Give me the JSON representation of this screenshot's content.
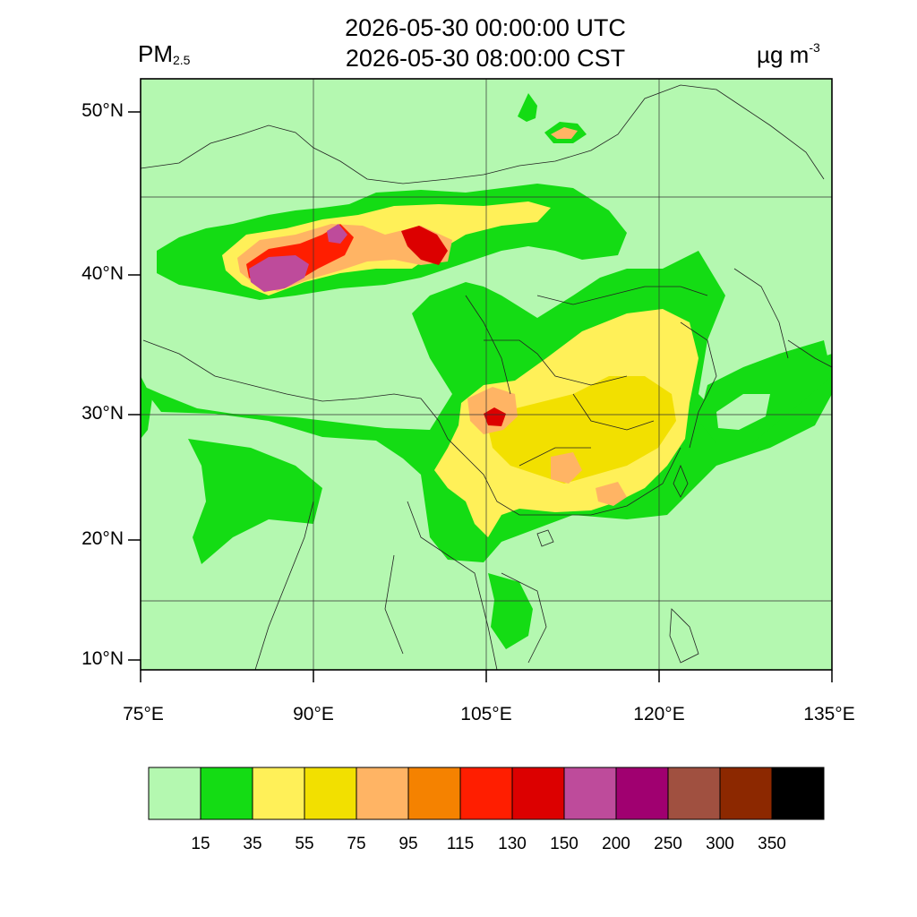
{
  "header": {
    "utc_time": "2026-05-30 00:00:00 UTC",
    "local_time": "2026-05-30 08:00:00 CST",
    "variable_base": "PM",
    "variable_sub": "2.5",
    "units_base": "µg m",
    "units_exp": "-3"
  },
  "axes": {
    "lat_labels": [
      "50°N",
      "40°N",
      "30°N",
      "20°N",
      "10°N"
    ],
    "lon_labels": [
      "75°E",
      "90°E",
      "105°E",
      "120°E",
      "135°E"
    ]
  },
  "colorbar": {
    "colors": [
      "#b4f8b0",
      "#14dc14",
      "#fff058",
      "#f2e000",
      "#ffb464",
      "#f58200",
      "#ff1e00",
      "#dc0000",
      "#be4b9b",
      "#a00070",
      "#a05040",
      "#8c2800",
      "#000000"
    ],
    "labels": [
      "15",
      "35",
      "55",
      "75",
      "95",
      "115",
      "130",
      "150",
      "200",
      "250",
      "300",
      "350"
    ]
  }
}
